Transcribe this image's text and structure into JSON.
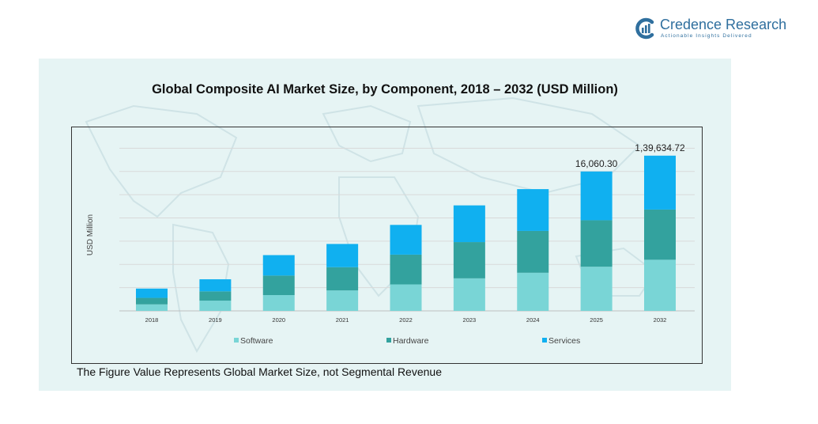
{
  "brand": {
    "name": "Credence Research",
    "tagline": "Actionable Insights Delivered",
    "logo_icon": "credence-c-logo-icon",
    "color": "#2f6f9e"
  },
  "title": "Global Composite  AI Market Size, by Component, 2018 – 2032 (USD Million)",
  "footnote": "The Figure Value Represents Global Market Size, not Segmental Revenue",
  "chart_data": {
    "type": "bar",
    "stacked": true,
    "categories": [
      "2018",
      "2019",
      "2020",
      "2021",
      "2022",
      "2023",
      "2024",
      "2025",
      "2032"
    ],
    "series": [
      {
        "name": "Software",
        "color": "#79d5d6",
        "values": [
          1.4,
          2.2,
          3.4,
          4.4,
          5.7,
          7.0,
          8.2,
          9.5,
          11.0
        ]
      },
      {
        "name": "Hardware",
        "color": "#33a29e",
        "values": [
          1.4,
          2.0,
          4.2,
          5.0,
          6.4,
          7.8,
          9.0,
          10.0,
          10.8
        ]
      },
      {
        "name": "Services",
        "color": "#10b0f0",
        "values": [
          2.0,
          2.6,
          4.4,
          5.0,
          6.4,
          7.9,
          9.0,
          10.5,
          11.6
        ]
      }
    ],
    "data_labels": [
      {
        "category": "2025",
        "text": "16,060.30"
      },
      {
        "category": "2032",
        "text": "1,39,634.72"
      }
    ],
    "ylabel": "USD Million",
    "xlabel": "",
    "ylim": [
      0,
      36
    ],
    "grid": true,
    "y_tick_labels_shown": false,
    "legend_position": "bottom"
  }
}
